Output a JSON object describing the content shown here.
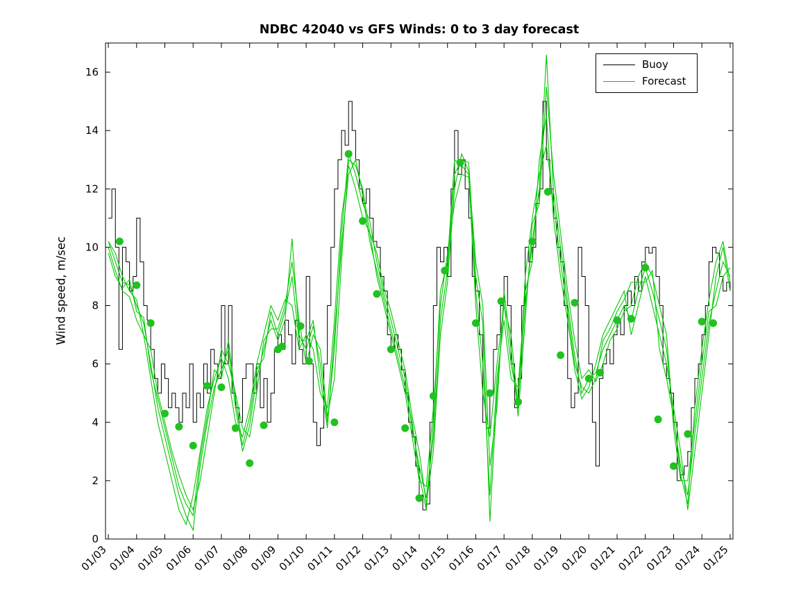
{
  "chart_data": {
    "type": "line",
    "title": "NDBC 42040 vs GFS Winds: 0 to 3 day forecast",
    "ylabel": "Wind speed, m/sec",
    "xlabel": "",
    "legend": [
      "Buoy",
      "Forecast"
    ],
    "legend_position": "top-right",
    "grid": false,
    "ylim": [
      0,
      17
    ],
    "xlim": [
      2.9,
      25.1
    ],
    "yticks": [
      0,
      2,
      4,
      6,
      8,
      10,
      12,
      14,
      16
    ],
    "xticks": {
      "positions": [
        3,
        4,
        5,
        6,
        7,
        8,
        9,
        10,
        11,
        12,
        13,
        14,
        15,
        16,
        17,
        18,
        19,
        20,
        21,
        22,
        23,
        24,
        25
      ],
      "labels": [
        "01/03",
        "01/04",
        "01/05",
        "01/06",
        "01/07",
        "01/08",
        "01/09",
        "01/10",
        "01/11",
        "01/12",
        "01/13",
        "01/14",
        "01/15",
        "01/16",
        "01/17",
        "01/18",
        "01/19",
        "01/20",
        "01/21",
        "01/22",
        "01/23",
        "01/24",
        "01/25"
      ]
    },
    "colors": {
      "buoy": "#000000",
      "forecast": "#00c800",
      "marker": "#22c122"
    },
    "buoy": {
      "style": "step",
      "t_start": 3.0,
      "dt": 0.125,
      "values": [
        11,
        12,
        10,
        6.5,
        10,
        9.5,
        8.5,
        9,
        11,
        9.5,
        8,
        7.5,
        6.5,
        5.5,
        5,
        6,
        5.5,
        4.5,
        5,
        4.5,
        4,
        5,
        4.5,
        6,
        4,
        5,
        4.5,
        6,
        5,
        6.5,
        6,
        5.5,
        8,
        6,
        8,
        5,
        4.5,
        4,
        5.5,
        6,
        6,
        5,
        6,
        4.5,
        5.5,
        4,
        5,
        6.5,
        7,
        6.5,
        7.5,
        7,
        6,
        7.5,
        6.5,
        6,
        9,
        6,
        4,
        3.2,
        3.8,
        6,
        8,
        10,
        12,
        13,
        14,
        13.5,
        15,
        14,
        13,
        12,
        11.5,
        12,
        11,
        10.2,
        10,
        9,
        8.5,
        7,
        6.5,
        7,
        6.5,
        5.8,
        5,
        4,
        3.5,
        2.5,
        1.5,
        1,
        1.2,
        4,
        8,
        10,
        9.5,
        10,
        9,
        12,
        14,
        12.5,
        13,
        12,
        11,
        9,
        8.5,
        7,
        4,
        3.8,
        5,
        6.5,
        7,
        8,
        9,
        8,
        6,
        4.5,
        5.5,
        8,
        10,
        9.5,
        10,
        11.5,
        12,
        15,
        13,
        12,
        11,
        10,
        9.5,
        8,
        5.5,
        4.5,
        5,
        10,
        9,
        8,
        6,
        4,
        2.5,
        5.5,
        6,
        6.5,
        6,
        7,
        7.5,
        7,
        8,
        8.5,
        8,
        9,
        8.5,
        9.5,
        10,
        9.8,
        10,
        9,
        8,
        6,
        5.5,
        5,
        4,
        2,
        2.2,
        2.5,
        3,
        4.5,
        5.5,
        6,
        7,
        8,
        9.5,
        10,
        9.8,
        9,
        8.5,
        8.8,
        8.5
      ]
    },
    "forecast_series": [
      {
        "name": "forecast-run-1",
        "t_start": 3.0,
        "dt": 0.25,
        "values": [
          10.2,
          9.5,
          8.8,
          8.7,
          8.0,
          7.4,
          6.0,
          4.5,
          3.5,
          2.5,
          1.5,
          0.8,
          0.3,
          2.5,
          4.0,
          5.2,
          5.8,
          6.5,
          4.5,
          3.0,
          3.9,
          5.5,
          6.5,
          7.5,
          6.8,
          7.5,
          10.3,
          7.0,
          6.5,
          7.3,
          6.0,
          4.0,
          6.5,
          10.5,
          13.2,
          12.5,
          11.5,
          10.9,
          9.5,
          8.4,
          7.5,
          6.5,
          5.5,
          3.8,
          2.5,
          1.4,
          3.5,
          7.5,
          9.2,
          12.5,
          13.0,
          12.9,
          9.0,
          7.4,
          0.6,
          5.0,
          8.1,
          6.0,
          4.7,
          8.0,
          10.2,
          12.0,
          16.6,
          11.9,
          10.0,
          8.1,
          6.3,
          5.0,
          5.5,
          5.7,
          6.5,
          7.0,
          7.5,
          8.0,
          7.5,
          8.5,
          9.3,
          8.5,
          7.5,
          6.5,
          4.1,
          2.5,
          1.5,
          3.6,
          5.5,
          7.4,
          8.5,
          9.5,
          9.0
        ]
      },
      {
        "name": "forecast-run-2",
        "t_start": 3.0,
        "dt": 0.25,
        "values": [
          10.0,
          9.2,
          8.5,
          8.3,
          7.5,
          7.0,
          5.5,
          4.0,
          3.0,
          2.0,
          1.0,
          0.5,
          1.5,
          3.0,
          4.5,
          5.5,
          6.2,
          5.5,
          4.0,
          3.5,
          4.5,
          6.0,
          7.0,
          8.0,
          7.5,
          8.2,
          8.0,
          6.5,
          7.0,
          6.5,
          5.0,
          4.5,
          7.5,
          11.0,
          12.8,
          12.0,
          11.0,
          10.5,
          9.0,
          8.0,
          7.0,
          6.0,
          5.0,
          3.5,
          2.0,
          1.8,
          4.5,
          8.0,
          9.8,
          11.5,
          12.5,
          12.4,
          8.5,
          6.0,
          1.5,
          5.5,
          7.5,
          5.5,
          5.2,
          8.5,
          9.5,
          13.0,
          14.5,
          11.0,
          9.0,
          7.5,
          5.8,
          4.8,
          5.2,
          6.0,
          7.0,
          7.5,
          8.0,
          8.5,
          7.0,
          8.0,
          9.0,
          8.0,
          7.0,
          6.0,
          4.5,
          3.0,
          1.0,
          3.0,
          5.0,
          7.0,
          9.0,
          10.0,
          8.5
        ]
      },
      {
        "name": "forecast-run-3",
        "t_start": 3.0,
        "dt": 0.25,
        "values": [
          10.2,
          9.8,
          9.0,
          8.5,
          8.2,
          7.0,
          6.5,
          5.0,
          4.0,
          3.0,
          2.2,
          1.5,
          1.0,
          2.0,
          3.5,
          5.0,
          6.5,
          6.0,
          5.0,
          3.8,
          3.5,
          5.0,
          6.8,
          7.2,
          7.2,
          8.0,
          9.5,
          7.5,
          6.0,
          7.0,
          6.5,
          4.2,
          5.5,
          9.5,
          13.0,
          12.8,
          12.0,
          10.5,
          9.8,
          8.6,
          7.8,
          6.8,
          5.8,
          4.2,
          3.0,
          1.2,
          3.0,
          7.0,
          8.8,
          12.0,
          13.2,
          12.6,
          9.5,
          8.0,
          2.5,
          4.5,
          8.5,
          6.5,
          4.2,
          7.5,
          10.8,
          11.5,
          15.5,
          12.5,
          10.5,
          8.5,
          6.8,
          5.5,
          5.8,
          5.4,
          6.0,
          6.8,
          7.2,
          7.8,
          8.0,
          9.0,
          9.5,
          9.0,
          8.0,
          7.0,
          3.8,
          2.0,
          2.0,
          4.0,
          6.0,
          7.8,
          8.0,
          9.0,
          9.3
        ]
      },
      {
        "name": "forecast-run-4",
        "t_start": 3.0,
        "dt": 0.25,
        "values": [
          9.8,
          9.0,
          8.6,
          8.9,
          7.8,
          7.6,
          5.8,
          4.8,
          3.8,
          2.8,
          1.8,
          1.2,
          0.8,
          2.8,
          4.2,
          5.8,
          5.5,
          6.8,
          4.8,
          3.2,
          4.2,
          5.8,
          6.2,
          7.8,
          7.0,
          7.8,
          9.0,
          6.8,
          6.8,
          7.5,
          5.5,
          3.8,
          7.0,
          10.0,
          12.5,
          13.0,
          11.8,
          10.2,
          9.2,
          8.2,
          7.2,
          6.2,
          5.2,
          4.0,
          2.2,
          1.0,
          4.0,
          8.5,
          9.5,
          13.0,
          12.8,
          12.5,
          8.0,
          5.0,
          3.5,
          6.0,
          8.0,
          7.0,
          4.5,
          9.0,
          11.0,
          12.5,
          13.5,
          11.5,
          9.5,
          7.8,
          6.0,
          5.2,
          5.0,
          5.5,
          6.8,
          7.2,
          7.8,
          8.2,
          8.8,
          8.8,
          8.8,
          9.2,
          6.5,
          5.5,
          4.2,
          2.2,
          1.2,
          4.5,
          6.5,
          8.2,
          9.5,
          10.2,
          8.8
        ]
      }
    ],
    "forecast_markers": {
      "t": [
        3.4,
        4.0,
        4.5,
        5.0,
        5.5,
        6.0,
        6.5,
        7.0,
        7.5,
        8.0,
        8.5,
        9.0,
        9.15,
        9.8,
        10.1,
        11.0,
        11.5,
        12.0,
        12.5,
        13.0,
        13.5,
        14.0,
        14.5,
        14.9,
        15.45,
        16.0,
        16.5,
        16.9,
        17.5,
        18.0,
        18.55,
        19.0,
        19.5,
        20.0,
        20.4,
        21.0,
        21.5,
        22.0,
        22.45,
        23.0,
        23.5,
        24.0,
        24.4
      ],
      "v": [
        10.2,
        8.7,
        7.4,
        4.3,
        3.85,
        3.2,
        5.25,
        5.2,
        3.8,
        2.6,
        3.9,
        6.5,
        6.6,
        7.3,
        6.1,
        4.0,
        13.2,
        10.9,
        8.4,
        6.5,
        3.8,
        1.4,
        4.9,
        9.2,
        12.9,
        7.4,
        5.0,
        8.15,
        4.7,
        10.2,
        11.9,
        6.3,
        8.1,
        5.5,
        5.7,
        7.5,
        7.55,
        9.3,
        4.1,
        2.5,
        3.6,
        7.45,
        7.4
      ]
    }
  }
}
